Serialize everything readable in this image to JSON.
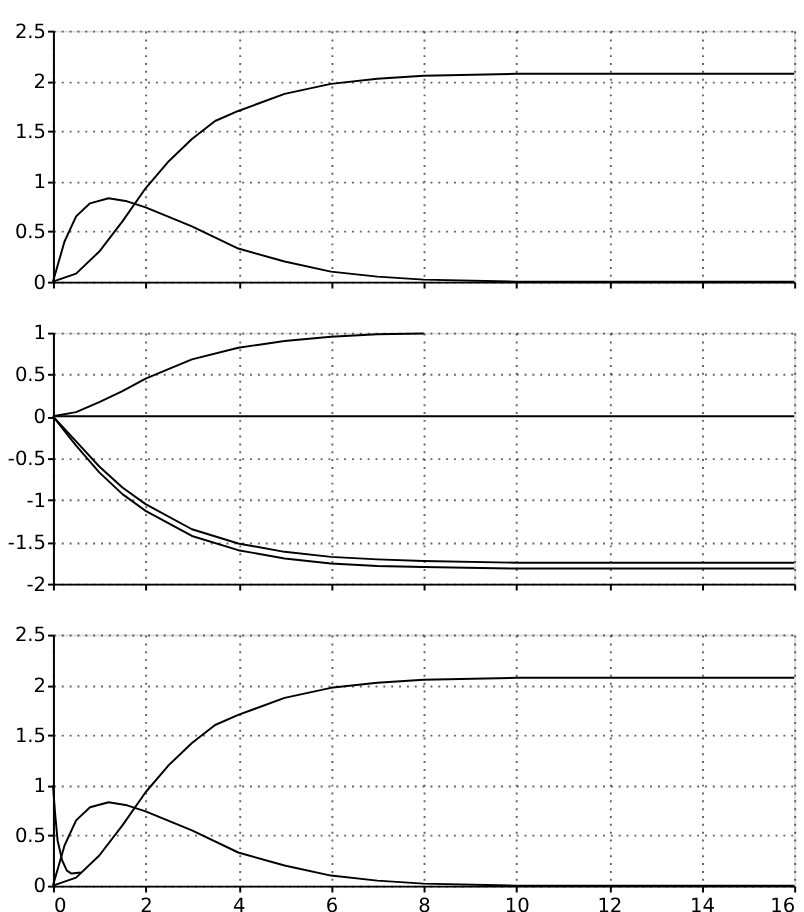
{
  "chart_data": [
    {
      "type": "line",
      "xlim": [
        0,
        16
      ],
      "xticks": [
        0,
        2,
        4,
        6,
        8,
        10,
        12,
        14,
        16
      ],
      "ylim": [
        0,
        2.5
      ],
      "yticks": [
        0,
        0.5,
        1,
        1.5,
        2,
        2.5
      ],
      "grid": true,
      "tick_labels": "y",
      "legend": false,
      "series": [
        {
          "color": "#000000",
          "x": [
            0,
            0.5,
            1,
            1.5,
            2,
            2.5,
            3,
            3.5,
            4,
            5,
            6,
            7,
            8,
            10,
            16
          ],
          "values": [
            0,
            0.08,
            0.3,
            0.6,
            0.93,
            1.2,
            1.42,
            1.6,
            1.7,
            1.87,
            1.97,
            2.02,
            2.05,
            2.07,
            2.07
          ]
        },
        {
          "color": "#000000",
          "x": [
            0,
            0.25,
            0.5,
            0.8,
            1.2,
            1.6,
            2,
            3,
            4,
            5,
            6,
            7,
            8,
            10,
            16
          ],
          "values": [
            0,
            0.4,
            0.65,
            0.78,
            0.83,
            0.8,
            0.74,
            0.55,
            0.33,
            0.2,
            0.1,
            0.05,
            0.02,
            0,
            0
          ]
        }
      ]
    },
    {
      "type": "line",
      "xlim": [
        0,
        16
      ],
      "xticks": [
        0,
        2,
        4,
        6,
        8,
        10,
        12,
        14,
        16
      ],
      "ylim": [
        -2,
        1
      ],
      "yticks": [
        -2,
        -1.5,
        -1,
        -0.5,
        0,
        0.5,
        1
      ],
      "grid": true,
      "tick_labels": "y",
      "legend": false,
      "series": [
        {
          "color": "#000000",
          "x": [
            0,
            0.5,
            1,
            1.5,
            2,
            3,
            4,
            5,
            6,
            7,
            8
          ],
          "values": [
            0,
            0.05,
            0.17,
            0.3,
            0.45,
            0.68,
            0.82,
            0.9,
            0.95,
            0.98,
            0.99
          ]
        },
        {
          "color": "#000000",
          "x": [
            0,
            16
          ],
          "values": [
            0,
            0
          ]
        },
        {
          "color": "#000000",
          "x": [
            0,
            0.5,
            1,
            1.5,
            2,
            3,
            4,
            5,
            6,
            7,
            8,
            10,
            16
          ],
          "values": [
            0,
            -0.3,
            -0.6,
            -0.85,
            -1.05,
            -1.35,
            -1.52,
            -1.62,
            -1.68,
            -1.71,
            -1.73,
            -1.75,
            -1.75
          ]
        },
        {
          "color": "#000000",
          "x": [
            0,
            0.5,
            1,
            1.5,
            2,
            3,
            4,
            5,
            6,
            7,
            8,
            10,
            16
          ],
          "values": [
            0,
            -0.35,
            -0.67,
            -0.93,
            -1.13,
            -1.43,
            -1.6,
            -1.7,
            -1.76,
            -1.79,
            -1.8,
            -1.82,
            -1.82
          ]
        }
      ]
    },
    {
      "type": "line",
      "xlim": [
        0,
        16
      ],
      "xticks": [
        0,
        2,
        4,
        6,
        8,
        10,
        12,
        14,
        16
      ],
      "ylim": [
        0,
        2.5
      ],
      "yticks": [
        0,
        0.5,
        1,
        1.5,
        2,
        2.5
      ],
      "grid": true,
      "legend": false,
      "series": [
        {
          "color": "#000000",
          "x": [
            0,
            0.5,
            1,
            1.5,
            2,
            2.5,
            3,
            3.5,
            4,
            5,
            6,
            7,
            8,
            10,
            16
          ],
          "values": [
            0,
            0.08,
            0.3,
            0.6,
            0.93,
            1.2,
            1.42,
            1.6,
            1.7,
            1.87,
            1.97,
            2.02,
            2.05,
            2.07,
            2.07
          ]
        },
        {
          "color": "#000000",
          "x": [
            0,
            0.25,
            0.5,
            0.8,
            1.2,
            1.6,
            2,
            3,
            4,
            5,
            6,
            7,
            8,
            10,
            16
          ],
          "values": [
            0,
            0.4,
            0.65,
            0.78,
            0.83,
            0.8,
            0.74,
            0.55,
            0.33,
            0.2,
            0.1,
            0.05,
            0.02,
            0,
            0
          ]
        },
        {
          "color": "#000000",
          "x": [
            0,
            0.05,
            0.1,
            0.2,
            0.3,
            0.4,
            0.6
          ],
          "values": [
            1,
            0.7,
            0.45,
            0.25,
            0.15,
            0.12,
            0.13
          ]
        }
      ]
    }
  ]
}
